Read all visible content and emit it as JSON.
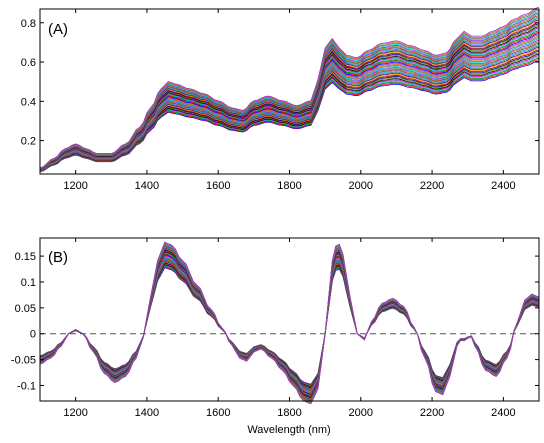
{
  "chart_data": [
    {
      "type": "line",
      "panel_label": "(A)",
      "xlabel": "",
      "ylabel": "",
      "xlim": [
        1100,
        2500
      ],
      "ylim": [
        0.03,
        0.87
      ],
      "x_ticks": [
        1200,
        1400,
        1600,
        1800,
        2000,
        2200,
        2400
      ],
      "y_ticks": [
        0.2,
        0.4,
        0.6,
        0.8
      ],
      "y_tick_labels": [
        "0.2",
        "0.4",
        "0.6",
        "0.8"
      ],
      "grid": false,
      "legend": "none",
      "series_count": 40,
      "series_spread": {
        "low_factor": 0.84,
        "high_factor": 1.22
      },
      "representative_series": {
        "x": [
          1100,
          1140,
          1170,
          1200,
          1230,
          1260,
          1300,
          1340,
          1380,
          1410,
          1440,
          1460,
          1480,
          1520,
          1560,
          1600,
          1640,
          1670,
          1700,
          1740,
          1780,
          1820,
          1860,
          1880,
          1900,
          1920,
          1940,
          1960,
          1990,
          2020,
          2060,
          2100,
          2140,
          2180,
          2210,
          2240,
          2270,
          2290,
          2310,
          2340,
          2370,
          2400,
          2430,
          2460,
          2500
        ],
        "y": [
          0.05,
          0.09,
          0.13,
          0.15,
          0.13,
          0.11,
          0.11,
          0.15,
          0.22,
          0.3,
          0.38,
          0.41,
          0.4,
          0.38,
          0.36,
          0.33,
          0.3,
          0.29,
          0.33,
          0.35,
          0.33,
          0.31,
          0.33,
          0.42,
          0.55,
          0.59,
          0.55,
          0.52,
          0.51,
          0.54,
          0.57,
          0.58,
          0.56,
          0.54,
          0.52,
          0.53,
          0.59,
          0.62,
          0.6,
          0.6,
          0.62,
          0.64,
          0.67,
          0.69,
          0.72
        ]
      }
    },
    {
      "type": "line",
      "panel_label": "(B)",
      "xlabel": "Wavelength (nm)",
      "ylabel": "",
      "xlim": [
        1100,
        2500
      ],
      "ylim": [
        -0.13,
        0.185
      ],
      "x_ticks": [
        1200,
        1400,
        1600,
        1800,
        2000,
        2200,
        2400
      ],
      "y_ticks": [
        -0.1,
        -0.05,
        0,
        0.05,
        0.1,
        0.15
      ],
      "y_tick_labels": [
        "-0.1",
        "-0.05",
        "0",
        "0.05",
        "0.1",
        "0.15"
      ],
      "grid": false,
      "legend": "none",
      "zero_line": true,
      "series_count": 40,
      "series_spread": {
        "low_factor": 0.85,
        "high_factor": 1.18
      },
      "representative_series": {
        "x": [
          1100,
          1130,
          1160,
          1180,
          1200,
          1220,
          1250,
          1280,
          1310,
          1340,
          1370,
          1390,
          1410,
          1430,
          1450,
          1470,
          1500,
          1540,
          1580,
          1610,
          1640,
          1660,
          1680,
          1700,
          1720,
          1750,
          1780,
          1810,
          1840,
          1860,
          1880,
          1900,
          1920,
          1935,
          1950,
          1970,
          1990,
          2010,
          2030,
          2060,
          2090,
          2120,
          2150,
          2180,
          2210,
          2230,
          2250,
          2270,
          2285,
          2295,
          2305,
          2320,
          2350,
          2380,
          2410,
          2440,
          2460,
          2480,
          2500
        ],
        "y": [
          -0.05,
          -0.04,
          -0.02,
          0.0,
          0.007,
          0.0,
          -0.03,
          -0.065,
          -0.08,
          -0.07,
          -0.04,
          -0.005,
          0.06,
          0.12,
          0.15,
          0.145,
          0.12,
          0.08,
          0.04,
          0.01,
          -0.02,
          -0.04,
          -0.045,
          -0.03,
          -0.025,
          -0.04,
          -0.06,
          -0.085,
          -0.11,
          -0.115,
          -0.09,
          0.0,
          0.12,
          0.152,
          0.13,
          0.06,
          0.0,
          -0.01,
          0.02,
          0.05,
          0.058,
          0.045,
          0.01,
          -0.04,
          -0.095,
          -0.1,
          -0.07,
          -0.02,
          -0.008,
          -0.015,
          0.0,
          -0.02,
          -0.06,
          -0.07,
          -0.04,
          0.02,
          0.055,
          0.065,
          0.06
        ]
      }
    }
  ]
}
